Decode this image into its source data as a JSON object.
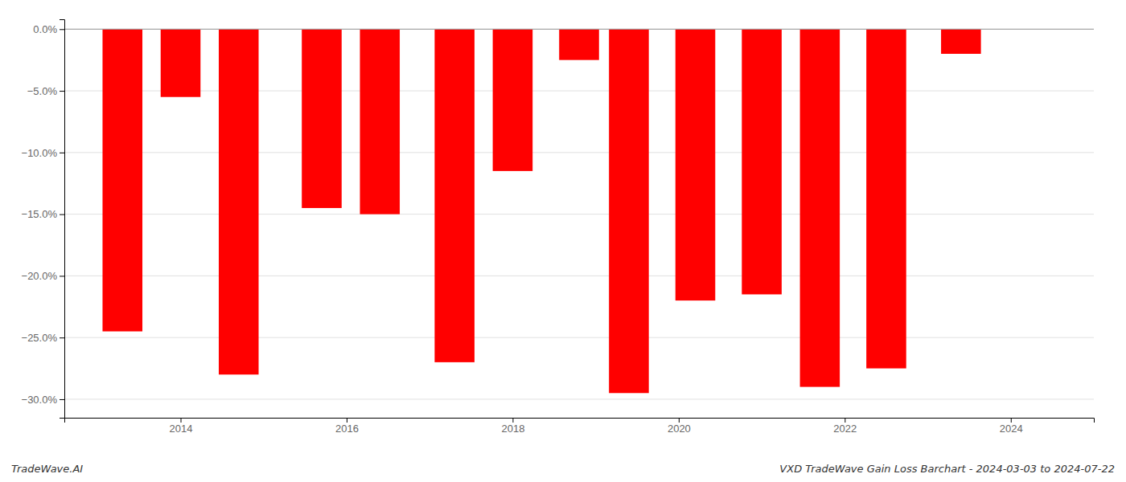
{
  "chart_data": {
    "type": "bar",
    "x": [
      2013.3,
      2014.0,
      2014.7,
      2015.7,
      2016.4,
      2017.3,
      2018.0,
      2018.8,
      2019.4,
      2020.2,
      2021.0,
      2021.7,
      2022.5,
      2023.4
    ],
    "values": [
      -24.5,
      -5.5,
      -28.0,
      -14.5,
      -15.0,
      -27.0,
      -11.5,
      -2.5,
      -29.5,
      -22.0,
      -21.5,
      -29.0,
      -27.5,
      -2.0
    ],
    "color": "#ff0000",
    "xlim": [
      2012.6,
      2025.0
    ],
    "xticks": [
      2014,
      2016,
      2018,
      2020,
      2022,
      2024
    ],
    "ylim": [
      -31.5,
      0.8
    ],
    "yticks": [
      {
        "value": 0.0,
        "label": "0.0%"
      },
      {
        "value": -5.0,
        "label": "−5.0%"
      },
      {
        "value": -10.0,
        "label": "−10.0%"
      },
      {
        "value": -15.0,
        "label": "−15.0%"
      },
      {
        "value": -20.0,
        "label": "−20.0%"
      },
      {
        "value": -25.0,
        "label": "−25.0%"
      },
      {
        "value": -30.0,
        "label": "−30.0%"
      }
    ],
    "grid": true,
    "annotations": [
      "TradeWave.AI",
      "VXD TradeWave Gain Loss Barchart - 2024-03-03 to 2024-07-22"
    ]
  }
}
